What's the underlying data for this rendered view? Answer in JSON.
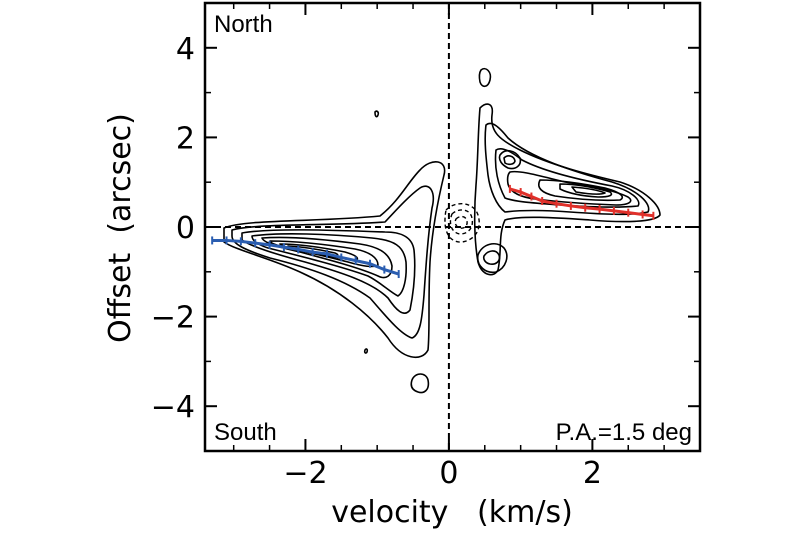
{
  "chart_data": {
    "type": "contour",
    "xlabel": "velocity   (km/s)",
    "ylabel": "Offset  (arcsec)",
    "xlim": [
      -3.4,
      3.5
    ],
    "ylim": [
      -5,
      5
    ],
    "x_ticks": [
      -2,
      0,
      2
    ],
    "x_tick_labels": [
      "−2",
      "0",
      "2"
    ],
    "y_ticks": [
      -4,
      -2,
      0,
      2,
      4
    ],
    "y_tick_labels": [
      "−4",
      "−2",
      "0",
      "2",
      "4"
    ],
    "reference_lines": {
      "x": 0,
      "y": 0,
      "style": "dashed"
    },
    "annotations": {
      "top_left": "North",
      "bottom_left": "South",
      "bottom_right": "P.A.=1.5 deg"
    },
    "colors": {
      "blue_series": "#2a5db0",
      "red_series": "#e0302a",
      "contours": "#000000"
    },
    "red_series": {
      "x": [
        0.85,
        1.0,
        1.15,
        1.3,
        1.5,
        1.7,
        1.9,
        2.1,
        2.3,
        2.5,
        2.7,
        2.85
      ],
      "y": [
        0.85,
        0.78,
        0.68,
        0.58,
        0.52,
        0.47,
        0.43,
        0.4,
        0.36,
        0.32,
        0.28,
        0.25
      ]
    },
    "blue_series": {
      "x": [
        -3.3,
        -3.1,
        -2.9,
        -2.7,
        -2.5,
        -2.3,
        -2.1,
        -1.9,
        -1.7,
        -1.5,
        -1.3,
        -1.1,
        -0.9,
        -0.7
      ],
      "y": [
        -0.3,
        -0.3,
        -0.32,
        -0.36,
        -0.4,
        -0.45,
        -0.5,
        -0.56,
        -0.6,
        -0.68,
        -0.75,
        -0.82,
        -0.95,
        -1.05
      ]
    }
  }
}
